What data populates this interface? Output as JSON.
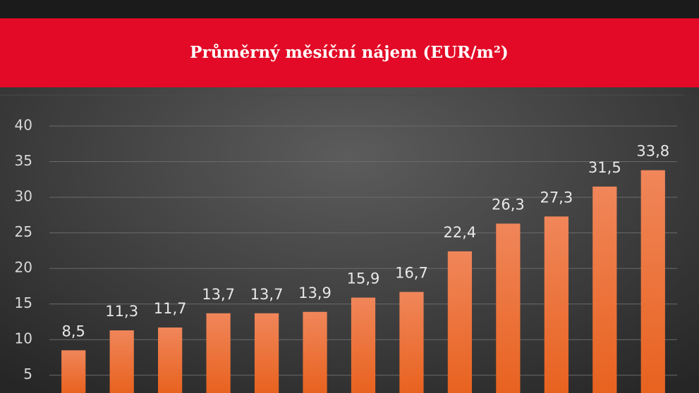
{
  "chart_data": {
    "type": "bar",
    "title": "Průměrný měsíční nájem (EUR/m²)",
    "categories": [
      null,
      null,
      null,
      null,
      null,
      null,
      null,
      null,
      null,
      null,
      null,
      null,
      null
    ],
    "values": [
      8.5,
      11.3,
      11.7,
      13.7,
      13.7,
      13.9,
      15.9,
      16.7,
      22.4,
      26.3,
      27.3,
      31.5,
      33.8
    ],
    "value_labels": [
      "8,5",
      "11,3",
      "11,7",
      "13,7",
      "13,7",
      "13,9",
      "15,9",
      "16,7",
      "22,4",
      "26,3",
      "27,3",
      "31,5",
      "33,8"
    ],
    "color": "#ec6f35",
    "ylim": [
      2.5,
      40
    ],
    "yticks": [
      5,
      10,
      15,
      20,
      25,
      30,
      35,
      40
    ],
    "grid": true
  }
}
